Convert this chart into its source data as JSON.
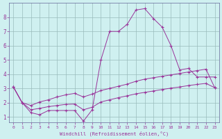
{
  "xlabel": "Windchill (Refroidissement éolien,°C)",
  "background_color": "#cff0f0",
  "grid_color": "#99bbbb",
  "line_color": "#993399",
  "spine_color": "#666699",
  "xlim": [
    -0.5,
    23.5
  ],
  "ylim": [
    0.6,
    9.0
  ],
  "yticks": [
    1,
    2,
    3,
    4,
    5,
    6,
    7,
    8
  ],
  "xticks": [
    0,
    1,
    2,
    3,
    4,
    5,
    6,
    7,
    8,
    9,
    10,
    11,
    12,
    13,
    14,
    15,
    16,
    17,
    18,
    19,
    20,
    21,
    22,
    23
  ],
  "line1_x": [
    0,
    1,
    2,
    3,
    4,
    5,
    6,
    7,
    8,
    9,
    10,
    11,
    12,
    13,
    14,
    15,
    16,
    17,
    18,
    19,
    20,
    21,
    22,
    23
  ],
  "line1_y": [
    3.1,
    2.0,
    1.3,
    1.15,
    1.45,
    1.45,
    1.45,
    1.45,
    0.7,
    1.5,
    5.0,
    7.0,
    7.0,
    7.5,
    8.5,
    8.6,
    7.9,
    7.3,
    6.0,
    4.3,
    4.4,
    3.8,
    3.8,
    3.8
  ],
  "line2_x": [
    0,
    1,
    2,
    3,
    4,
    5,
    6,
    7,
    8,
    9,
    10,
    11,
    12,
    13,
    14,
    15,
    16,
    17,
    18,
    19,
    20,
    21,
    22,
    23
  ],
  "line2_y": [
    3.1,
    2.0,
    1.8,
    2.05,
    2.2,
    2.4,
    2.55,
    2.65,
    2.4,
    2.6,
    2.85,
    3.0,
    3.15,
    3.3,
    3.5,
    3.65,
    3.75,
    3.85,
    3.95,
    4.05,
    4.15,
    4.25,
    4.35,
    3.05
  ],
  "line3_x": [
    0,
    1,
    2,
    3,
    4,
    5,
    6,
    7,
    8,
    9,
    10,
    11,
    12,
    13,
    14,
    15,
    16,
    17,
    18,
    19,
    20,
    21,
    22,
    23
  ],
  "line3_y": [
    3.1,
    2.0,
    1.5,
    1.6,
    1.72,
    1.8,
    1.88,
    1.9,
    1.5,
    1.68,
    2.05,
    2.2,
    2.35,
    2.48,
    2.62,
    2.72,
    2.82,
    2.92,
    3.02,
    3.1,
    3.2,
    3.28,
    3.35,
    3.05
  ]
}
